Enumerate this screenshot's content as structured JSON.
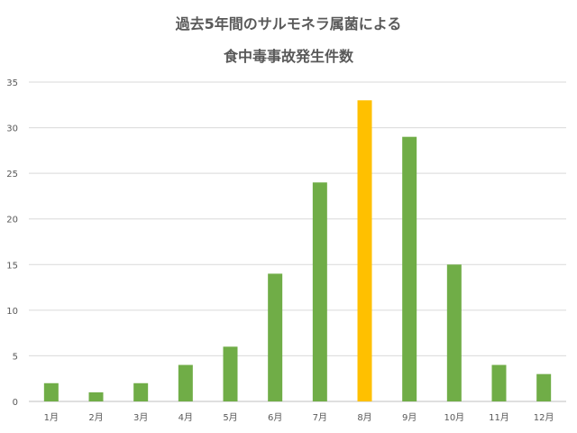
{
  "chart_data": {
    "type": "bar",
    "title_lines": [
      "過去5年間のサルモネラ属菌による",
      "食中毒事故発生件数"
    ],
    "categories": [
      "1月",
      "2月",
      "3月",
      "4月",
      "5月",
      "6月",
      "7月",
      "8月",
      "9月",
      "10月",
      "11月",
      "12月"
    ],
    "values": [
      2,
      1,
      2,
      4,
      6,
      14,
      24,
      33,
      29,
      15,
      4,
      3
    ],
    "highlight_index": 7,
    "ylim": [
      0,
      35
    ],
    "yticks": [
      0,
      5,
      10,
      15,
      20,
      25,
      30,
      35
    ],
    "grid": true,
    "legend": "none",
    "colors": {
      "bar": "#70AD47",
      "highlight": "#FFC000",
      "grid": "#D9D9D9",
      "text": "#595959"
    }
  }
}
